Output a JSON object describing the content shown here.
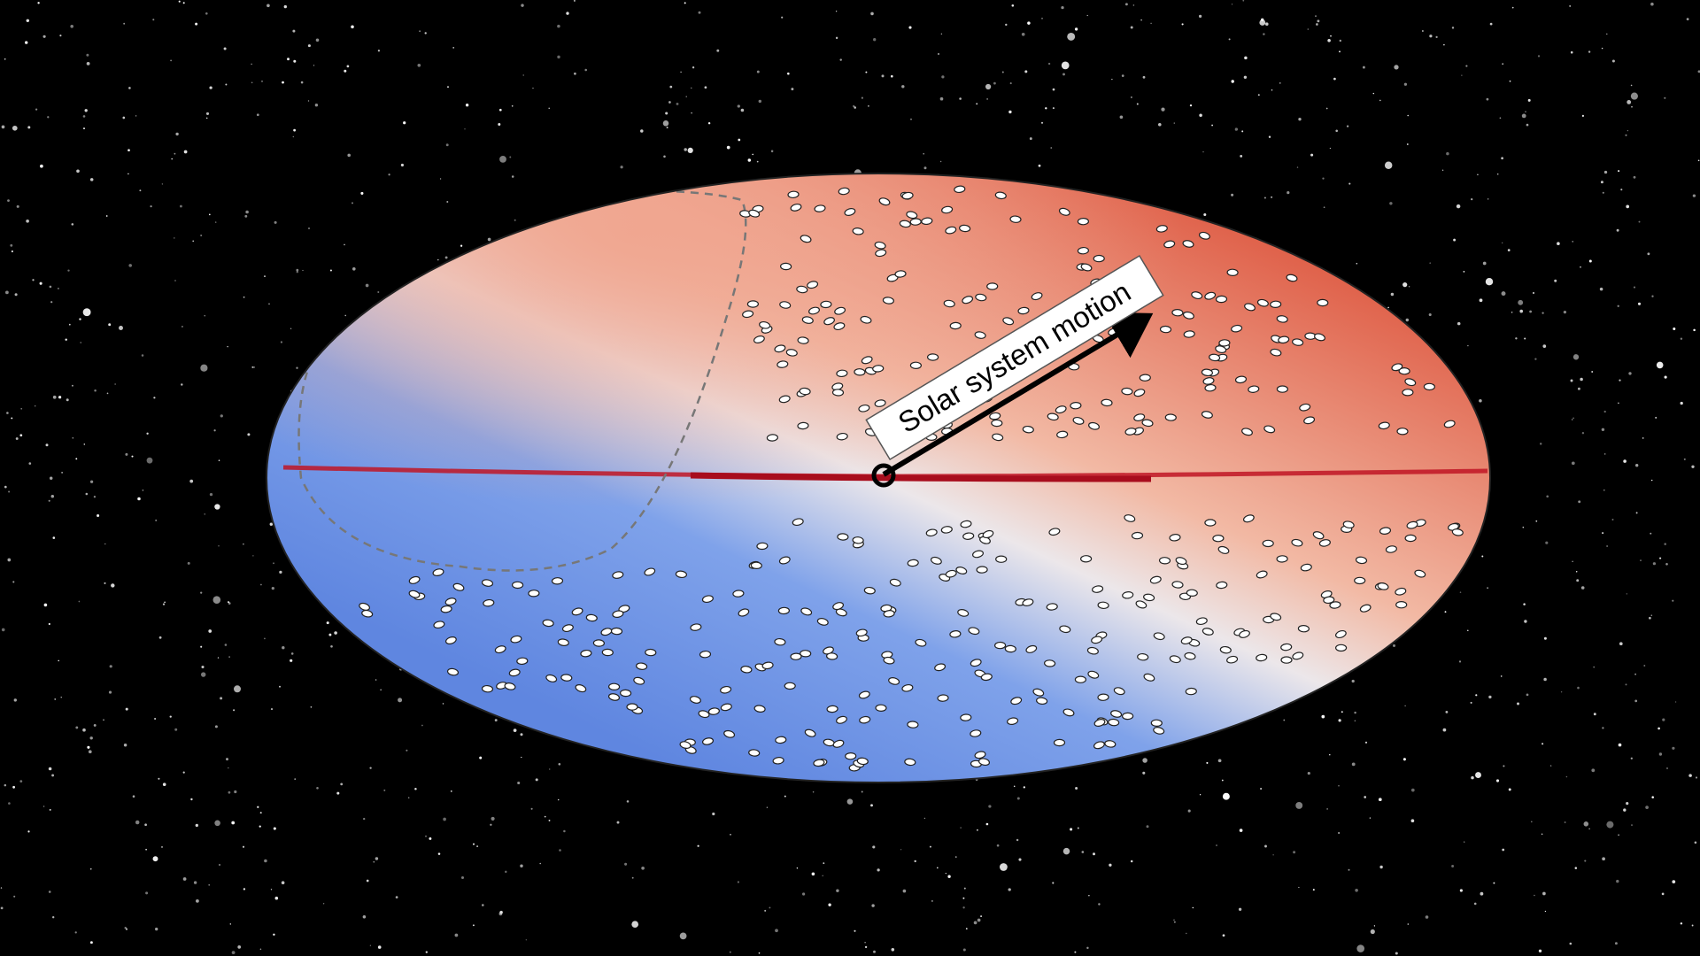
{
  "label": "Solar system motion"
}
